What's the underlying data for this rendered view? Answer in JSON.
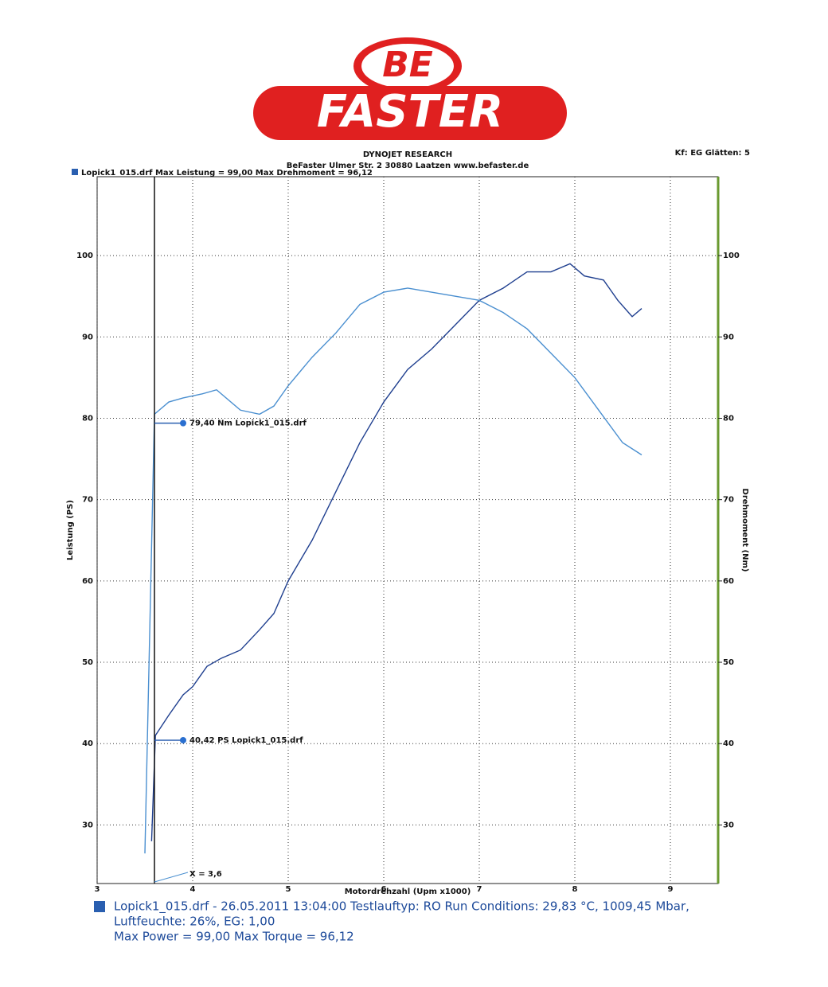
{
  "header": {
    "logo_top": "BE",
    "logo_bottom": "FASTER",
    "title": "DYNOJET RESEARCH",
    "address": "BeFaster Ulmer Str. 2 30880 Laatzen www.befaster.de",
    "settings": "Kf: EG  Glätten: 5",
    "legend": "Lopick1_015.drf Max Leistung = 99,00    Max Drehmoment = 96,12"
  },
  "chart_data": {
    "type": "line",
    "x_label": "Motordrehzahl (Upm x1000)",
    "y_label": "Leistung (PS)",
    "y2_label": "Drehmoment (Nm)",
    "xlim": [
      3,
      9.5
    ],
    "ylim": [
      22.8,
      109.7
    ],
    "y2lim": [
      22.8,
      109.7
    ],
    "xticks": [
      3,
      4,
      5,
      6,
      7,
      8,
      9
    ],
    "yticks": [
      30,
      40,
      50,
      60,
      70,
      80,
      90,
      100
    ],
    "y2ticks": [
      30,
      40,
      50,
      60,
      70,
      80,
      90,
      100
    ],
    "grid": true,
    "series": [
      {
        "color": "#1f3f8f",
        "x": [
          3.57,
          3.61,
          3.75,
          3.9,
          4.0,
          4.15,
          4.3,
          4.5,
          4.7,
          4.85,
          5.0,
          5.25,
          5.5,
          5.75,
          6.0,
          6.25,
          6.5,
          6.75,
          7.0,
          7.25,
          7.5,
          7.75,
          7.95,
          8.1,
          8.3,
          8.45,
          8.6,
          8.7
        ],
        "values": [
          28,
          41,
          43.5,
          46,
          47,
          49.5,
          50.5,
          51.5,
          54,
          56,
          60,
          65,
          71,
          77,
          82,
          86,
          88.5,
          91.5,
          94.5,
          96,
          98,
          98,
          99,
          97.5,
          97,
          94.5,
          92.5,
          93.5
        ]
      },
      {
        "color": "#4a8fd0",
        "axis": "y2",
        "x": [
          3.5,
          3.6,
          3.75,
          3.9,
          4.1,
          4.25,
          4.5,
          4.7,
          4.85,
          5.0,
          5.25,
          5.5,
          5.75,
          6.0,
          6.25,
          6.5,
          6.75,
          7.0,
          7.25,
          7.5,
          7.75,
          8.0,
          8.25,
          8.5,
          8.7
        ],
        "values": [
          26.5,
          80.5,
          82,
          82.5,
          83,
          83.5,
          81,
          80.5,
          81.5,
          84,
          87.5,
          90.5,
          94,
          95.5,
          96,
          95.5,
          95,
          94.5,
          93,
          91,
          88,
          85,
          81,
          77,
          75.5
        ]
      }
    ],
    "cursor": {
      "value": 3.6,
      "label": "X = 3,6"
    },
    "annotations": [
      {
        "value": 79.4,
        "axis": "y2",
        "label": "79,40 Nm Lopick1_015.drf"
      },
      {
        "value": 40.42,
        "label": "40,42 PS Lopick1_015.drf"
      }
    ]
  },
  "footer": {
    "lines": [
      "Lopick1_015.drf - 26.05.2011 13:04:00  Testlauftyp: RO  Run Conditions: 29,83 °C, 1009,45 Mbar,",
      "Luftfeuchte: 26%, EG: 1,00",
      "Max Power = 99,00  Max Torque = 96,12"
    ]
  }
}
